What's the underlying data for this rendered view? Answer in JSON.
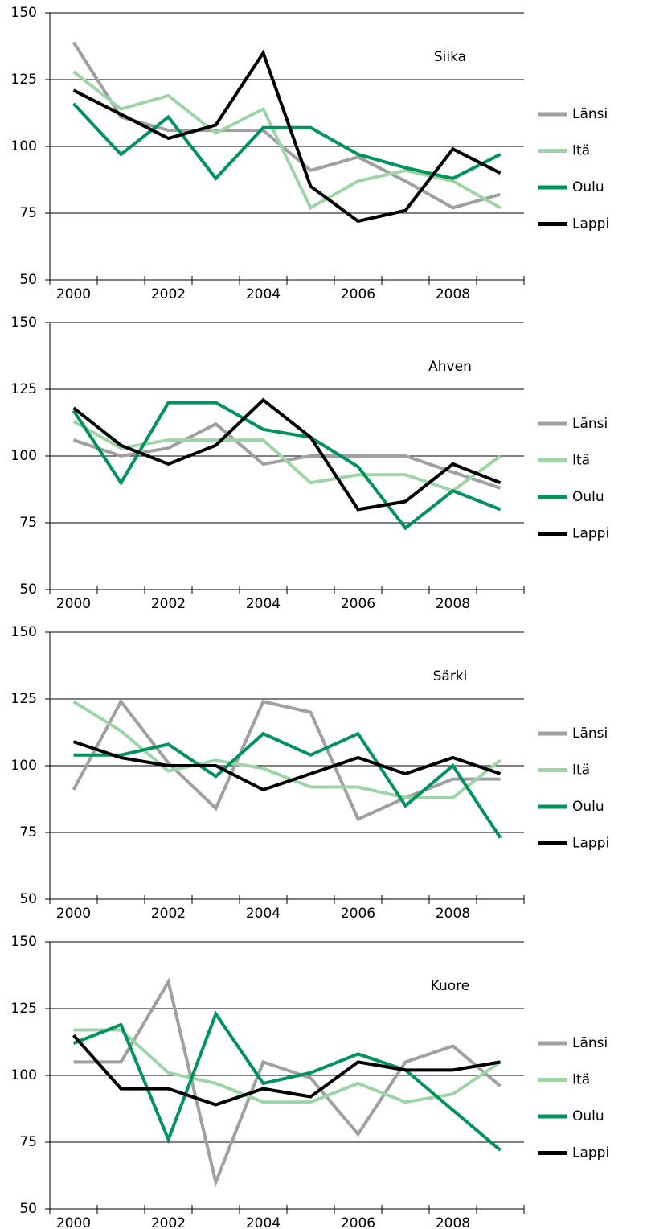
{
  "chart_data": [
    {
      "type": "line",
      "title": "Siika",
      "categories": [
        "2000",
        null,
        "2002",
        null,
        "2004",
        null,
        "2006",
        null,
        "2008",
        null
      ],
      "series": [
        {
          "name": "Länsi",
          "color": "#a0a0a0",
          "values": [
            139,
            111,
            106,
            106,
            106,
            91,
            96,
            87,
            77,
            82
          ]
        },
        {
          "name": "Itä",
          "color": "#9fd4a8",
          "values": [
            128,
            114,
            119,
            105,
            114,
            77,
            87,
            91,
            87,
            77
          ]
        },
        {
          "name": "Oulu",
          "color": "#00945a",
          "values": [
            116,
            97,
            111,
            88,
            107,
            107,
            97,
            92,
            88,
            97
          ]
        },
        {
          "name": "Lappi",
          "color": "#000000",
          "values": [
            121,
            112,
            103,
            108,
            135,
            85,
            72,
            76,
            99,
            90
          ]
        }
      ],
      "ylim": [
        50,
        150
      ],
      "yticks": [
        50,
        75,
        100,
        125,
        150
      ],
      "grid": true,
      "legend": "right"
    },
    {
      "type": "line",
      "title": "Ahven",
      "categories": [
        "2000",
        null,
        "2002",
        null,
        "2004",
        null,
        "2006",
        null,
        "2008",
        null
      ],
      "series": [
        {
          "name": "Länsi",
          "color": "#a0a0a0",
          "values": [
            106,
            100,
            103,
            112,
            97,
            100,
            100,
            100,
            94,
            88
          ]
        },
        {
          "name": "Itä",
          "color": "#9fd4a8",
          "values": [
            113,
            103,
            106,
            106,
            106,
            90,
            93,
            93,
            87,
            100
          ]
        },
        {
          "name": "Oulu",
          "color": "#00945a",
          "values": [
            117,
            90,
            120,
            120,
            110,
            107,
            96,
            73,
            87,
            80
          ]
        },
        {
          "name": "Lappi",
          "color": "#000000",
          "values": [
            118,
            104,
            97,
            104,
            121,
            107,
            80,
            83,
            97,
            90
          ]
        }
      ],
      "ylim": [
        50,
        150
      ],
      "yticks": [
        50,
        75,
        100,
        125,
        150
      ],
      "grid": true,
      "legend": "right"
    },
    {
      "type": "line",
      "title": "Särki",
      "categories": [
        "2000",
        null,
        "2002",
        null,
        "2004",
        null,
        "2006",
        null,
        "2008",
        null
      ],
      "series": [
        {
          "name": "Länsi",
          "color": "#a0a0a0",
          "values": [
            91,
            124,
            101,
            84,
            124,
            120,
            80,
            88,
            95,
            95
          ]
        },
        {
          "name": "Itä",
          "color": "#9fd4a8",
          "values": [
            124,
            113,
            98,
            102,
            99,
            92,
            92,
            88,
            88,
            102
          ]
        },
        {
          "name": "Oulu",
          "color": "#00945a",
          "values": [
            104,
            104,
            108,
            96,
            112,
            104,
            112,
            85,
            100,
            73
          ]
        },
        {
          "name": "Lappi",
          "color": "#000000",
          "values": [
            109,
            103,
            100,
            100,
            91,
            97,
            103,
            97,
            103,
            97
          ]
        }
      ],
      "ylim": [
        50,
        150
      ],
      "yticks": [
        50,
        75,
        100,
        125,
        150
      ],
      "grid": true,
      "legend": "right"
    },
    {
      "type": "line",
      "title": "Kuore",
      "categories": [
        "2000",
        null,
        "2002",
        null,
        "2004",
        null,
        "2006",
        null,
        "2008",
        null
      ],
      "series": [
        {
          "name": "Länsi",
          "color": "#a0a0a0",
          "values": [
            105,
            105,
            135,
            60,
            105,
            99,
            78,
            105,
            111,
            96
          ]
        },
        {
          "name": "Itä",
          "color": "#9fd4a8",
          "values": [
            117,
            117,
            101,
            97,
            90,
            90,
            97,
            90,
            93,
            105
          ]
        },
        {
          "name": "Oulu",
          "color": "#00945a",
          "values": [
            112,
            119,
            76,
            123,
            97,
            101,
            108,
            102,
            87,
            72
          ]
        },
        {
          "name": "Lappi",
          "color": "#000000",
          "values": [
            115,
            95,
            95,
            89,
            95,
            92,
            105,
            102,
            102,
            105
          ]
        }
      ],
      "ylim": [
        50,
        150
      ],
      "yticks": [
        50,
        75,
        100,
        125,
        150
      ],
      "grid": true,
      "legend": "right"
    }
  ]
}
